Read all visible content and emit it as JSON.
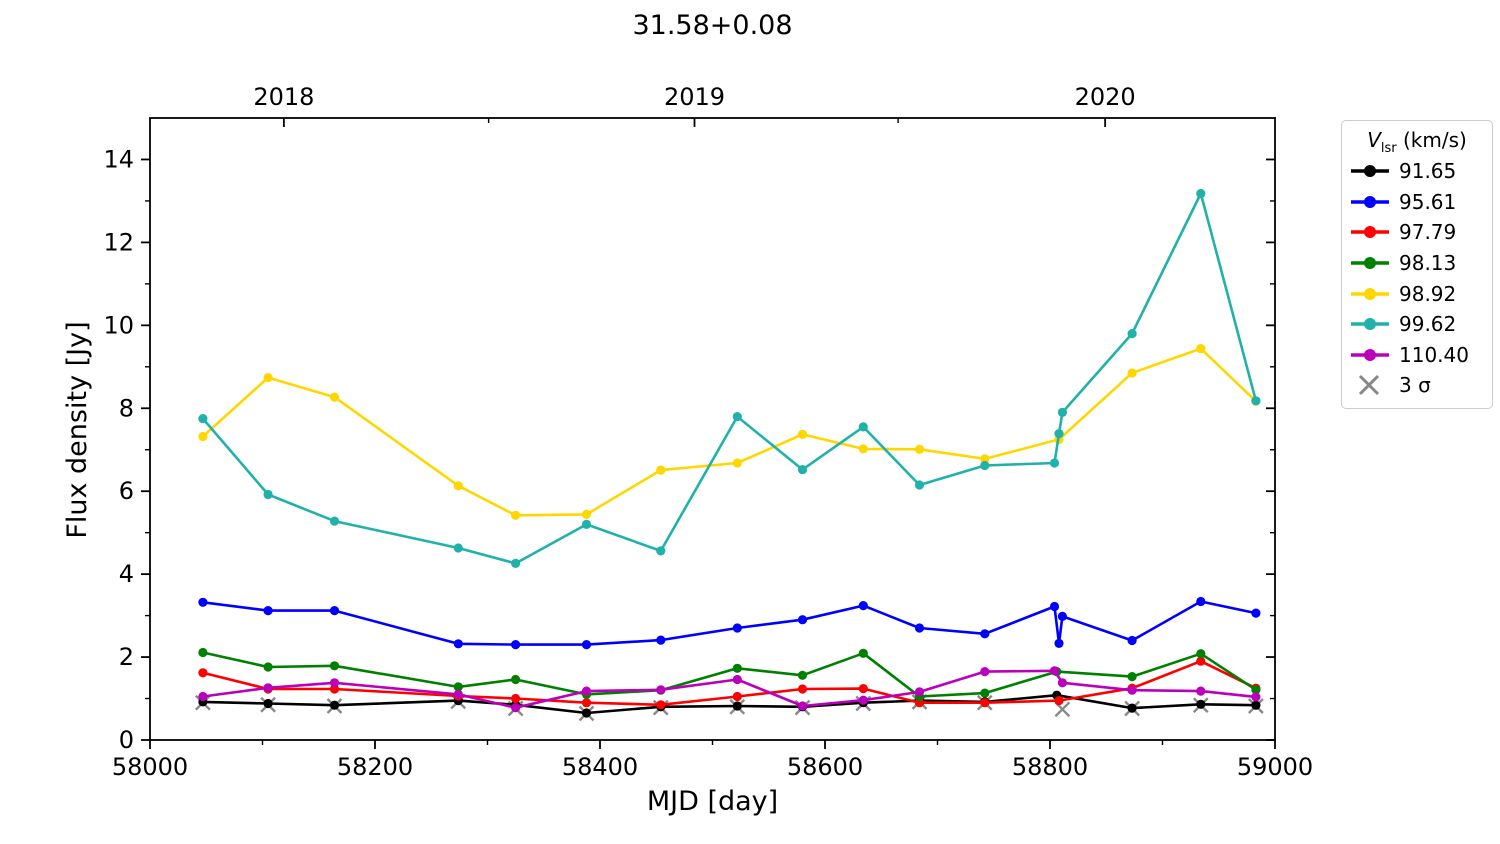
{
  "title": "31.58+0.08",
  "axes": {
    "xlabel": "MJD [day]",
    "ylabel": "Flux density [Jy]"
  },
  "legend": {
    "title_var": "V",
    "title_sub": "lsr",
    "title_unit": "(km/s)",
    "sigma_label": "3 σ",
    "sigma_color": "#888888",
    "position": "outside-upper-right"
  },
  "chart_data": {
    "type": "line",
    "title": "31.58+0.08",
    "xlabel": "MJD [day]",
    "ylabel": "Flux density [Jy]",
    "xlim": [
      58000,
      59000
    ],
    "ylim": [
      0,
      15
    ],
    "grid": false,
    "x_ticks": {
      "major": [
        58000,
        58200,
        58400,
        58600,
        58800,
        59000
      ],
      "minor": [
        58100,
        58300,
        58500,
        58700,
        58900
      ]
    },
    "y_ticks": {
      "major": [
        0,
        2,
        4,
        6,
        8,
        10,
        12,
        14
      ],
      "minor": [
        1,
        3,
        5,
        7,
        9,
        11,
        13
      ]
    },
    "top_axis": {
      "label_ticks": [
        {
          "label": "2018",
          "mjd": 58119
        },
        {
          "label": "2019",
          "mjd": 58484
        },
        {
          "label": "2020",
          "mjd": 58849
        }
      ],
      "minor": [
        58301,
        58665
      ]
    },
    "legend_title": "V_lsr (km/s)",
    "series": [
      {
        "name": "91.65",
        "color": "#000000",
        "x": [
          58047,
          58105,
          58164,
          58274,
          58325,
          58388,
          58454,
          58522,
          58580,
          58634,
          58684,
          58742,
          58806,
          58873,
          58934,
          58983
        ],
        "y": [
          0.92,
          0.88,
          0.84,
          0.95,
          0.85,
          0.65,
          0.8,
          0.82,
          0.8,
          0.9,
          0.95,
          0.92,
          1.08,
          0.77,
          0.86,
          0.84
        ]
      },
      {
        "name": "95.61",
        "color": "#0000ff",
        "x": [
          58047,
          58105,
          58164,
          58274,
          58325,
          58388,
          58454,
          58522,
          58580,
          58634,
          58684,
          58742,
          58804,
          58808,
          58811,
          58873,
          58934,
          58983
        ],
        "y": [
          3.32,
          3.12,
          3.12,
          2.32,
          2.3,
          2.3,
          2.41,
          2.7,
          2.9,
          3.24,
          2.7,
          2.56,
          3.22,
          2.33,
          2.98,
          2.4,
          3.34,
          3.06
        ]
      },
      {
        "name": "97.79",
        "color": "#ff0000",
        "x": [
          58047,
          58105,
          58164,
          58274,
          58325,
          58388,
          58454,
          58522,
          58580,
          58634,
          58684,
          58742,
          58808,
          58873,
          58934,
          58983
        ],
        "y": [
          1.62,
          1.23,
          1.23,
          1.06,
          1.0,
          0.9,
          0.85,
          1.05,
          1.23,
          1.24,
          0.9,
          0.9,
          0.95,
          1.25,
          1.9,
          1.25
        ]
      },
      {
        "name": "98.13",
        "color": "#008000",
        "x": [
          58047,
          58105,
          58164,
          58274,
          58325,
          58388,
          58454,
          58522,
          58580,
          58634,
          58684,
          58742,
          58806,
          58873,
          58934,
          58983
        ],
        "y": [
          2.11,
          1.76,
          1.79,
          1.28,
          1.46,
          1.1,
          1.2,
          1.73,
          1.56,
          2.09,
          1.05,
          1.13,
          1.65,
          1.53,
          2.08,
          1.21
        ]
      },
      {
        "name": "98.92",
        "color": "#ffd700",
        "x": [
          58047,
          58105,
          58164,
          58274,
          58325,
          58388,
          58454,
          58522,
          58580,
          58634,
          58684,
          58742,
          58808,
          58873,
          58934,
          58983
        ],
        "y": [
          7.32,
          8.74,
          8.27,
          6.13,
          5.42,
          5.44,
          6.51,
          6.68,
          7.37,
          7.02,
          7.01,
          6.78,
          7.25,
          8.85,
          9.44,
          8.17
        ]
      },
      {
        "name": "99.62",
        "color": "#20b2aa",
        "x": [
          58047,
          58105,
          58164,
          58274,
          58325,
          58388,
          58454,
          58522,
          58580,
          58634,
          58684,
          58742,
          58804,
          58808,
          58811,
          58873,
          58934,
          58983
        ],
        "y": [
          7.75,
          5.92,
          5.28,
          4.63,
          4.26,
          5.2,
          4.56,
          7.8,
          6.52,
          7.55,
          6.15,
          6.62,
          6.68,
          7.39,
          7.9,
          9.8,
          13.18,
          8.18
        ]
      },
      {
        "name": "110.40",
        "color": "#bb00bb",
        "x": [
          58047,
          58105,
          58164,
          58274,
          58325,
          58388,
          58454,
          58522,
          58580,
          58634,
          58684,
          58742,
          58804,
          58811,
          58873,
          58934,
          58983
        ],
        "y": [
          1.05,
          1.26,
          1.38,
          1.1,
          0.78,
          1.18,
          1.21,
          1.46,
          0.82,
          0.96,
          1.16,
          1.65,
          1.67,
          1.38,
          1.2,
          1.18,
          1.04
        ]
      }
    ],
    "sigma_series": {
      "name": "3 σ",
      "color": "#888888",
      "marker": "x",
      "x": [
        58047,
        58105,
        58164,
        58274,
        58325,
        58388,
        58454,
        58522,
        58580,
        58634,
        58684,
        58742,
        58811,
        58873,
        58934,
        58983
      ],
      "y": [
        0.9,
        0.85,
        0.82,
        0.93,
        0.76,
        0.64,
        0.78,
        0.8,
        0.78,
        0.88,
        0.92,
        0.9,
        0.74,
        0.76,
        0.84,
        0.82
      ]
    }
  }
}
